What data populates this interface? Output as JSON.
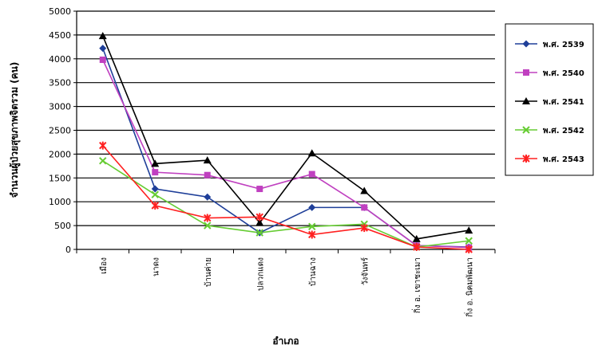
{
  "chart_data": {
    "type": "line",
    "title": "",
    "xlabel": "อำเภอ",
    "ylabel": "จำนวนผู้ป่วยสุขภาพจิตรวม (คน)",
    "ylim": [
      0,
      5000
    ],
    "yticks": [
      0,
      500,
      1000,
      1500,
      2000,
      2500,
      3000,
      3500,
      4000,
      4500,
      5000
    ],
    "grid": true,
    "legend_position": "right",
    "categories": [
      "เมือง",
      "นาดง",
      "บ้านค่าย",
      "ปลวกแดง",
      "บ้านฉาง",
      "วังจันทร์",
      "กิ่ง อ. เขาชะเมา",
      "กิ่ง อ. นิคมพัฒนา"
    ],
    "series": [
      {
        "name": "พ.ศ. 2539",
        "color": "#1f3f99",
        "marker": "diamond",
        "values": [
          4220,
          1270,
          1100,
          350,
          880,
          880,
          80,
          50
        ]
      },
      {
        "name": "พ.ศ. 2540",
        "color": "#c040c0",
        "marker": "square",
        "values": [
          3980,
          1620,
          1560,
          1270,
          1580,
          880,
          80,
          40
        ]
      },
      {
        "name": "พ.ศ. 2541",
        "color": "#000000",
        "marker": "triangle",
        "values": [
          4480,
          1800,
          1870,
          560,
          2020,
          1230,
          220,
          400
        ]
      },
      {
        "name": "พ.ศ. 2542",
        "color": "#66cc33",
        "marker": "x",
        "values": [
          1860,
          1150,
          500,
          350,
          480,
          530,
          50,
          180
        ]
      },
      {
        "name": "พ.ศ. 2543",
        "color": "#ff2020",
        "marker": "star",
        "values": [
          2180,
          920,
          660,
          680,
          310,
          450,
          50,
          0
        ]
      }
    ]
  }
}
